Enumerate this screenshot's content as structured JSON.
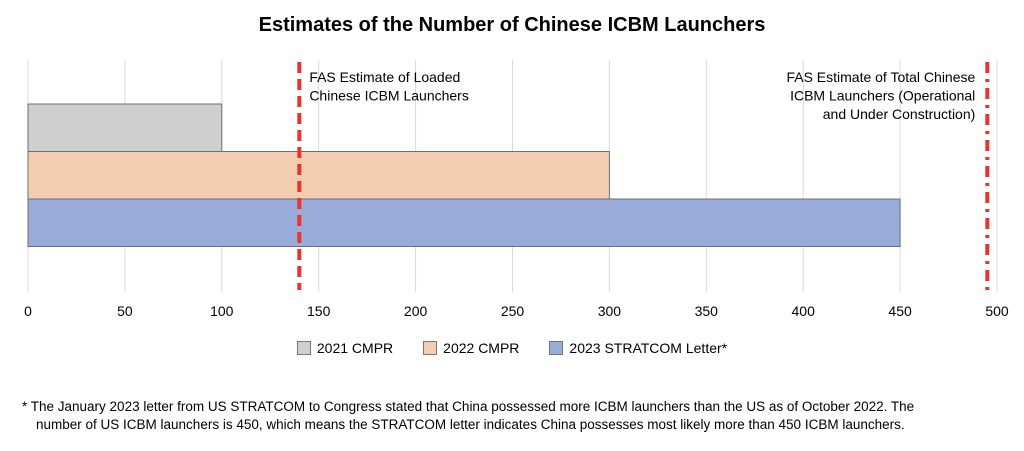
{
  "chart_data": {
    "type": "bar",
    "orientation": "horizontal",
    "title": "Estimates of the Number of Chinese ICBM Launchers",
    "series": [
      {
        "name": "2021 CMPR",
        "value": 100,
        "color": "#d0cfcf"
      },
      {
        "name": "2022 CMPR",
        "value": 300,
        "color": "#f2cdb2"
      },
      {
        "name": "2023 STRATCOM Letter*",
        "value": 450,
        "color": "#99acd9"
      }
    ],
    "xlim": [
      0,
      500
    ],
    "xticks": [
      "0",
      "50",
      "100",
      "150",
      "200",
      "250",
      "300",
      "350",
      "400",
      "450",
      "500"
    ],
    "grid": true,
    "legend_position": "bottom",
    "reference_lines": [
      {
        "value": 140,
        "label_lines": [
          "FAS Estimate of Loaded",
          "Chinese ICBM Launchers"
        ],
        "color": "#e8332a",
        "style": "dashed"
      },
      {
        "value": 495,
        "label_lines": [
          "FAS Estimate of Total Chinese",
          "ICBM Launchers (Operational",
          "and Under Construction)"
        ],
        "color": "#e8332a",
        "style": "dash-dot"
      }
    ]
  },
  "footnote": {
    "line1": "* The January 2023 letter from US STRATCOM to Congress stated that China possessed more ICBM launchers than the US as of October 2022. The",
    "line2": "number of US ICBM launchers is 450, which means the STRATCOM letter indicates China possesses most likely more than 450 ICBM launchers."
  }
}
